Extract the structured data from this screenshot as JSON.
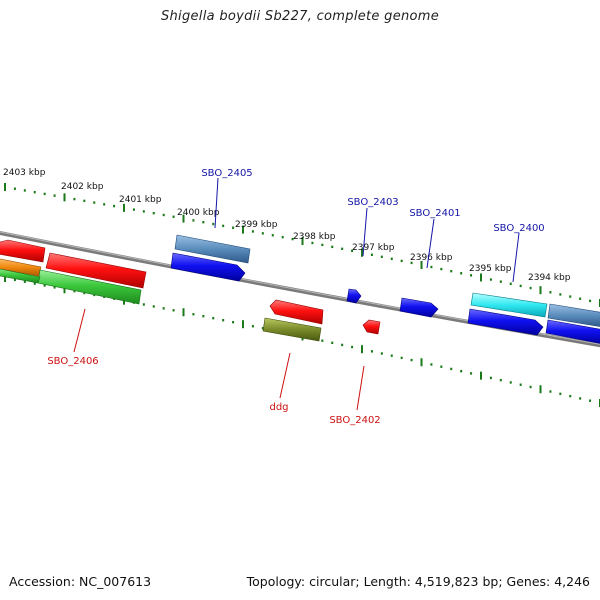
{
  "title": "Shigella boydii Sb227, complete genome",
  "footer": {
    "accession": "Accession: NC_007613",
    "stats": "Topology: circular; Length: 4,519,823 bp; Genes: 4,246"
  },
  "colors": {
    "backbone": "#808080",
    "tick": "#1a7a1a",
    "label_forward": "#1515a8",
    "label_reverse": "#cc1111"
  },
  "scale_labels": [
    "2403 kbp",
    "2402 kbp",
    "2401 kbp",
    "2400 kbp",
    "2399 kbp",
    "2398 kbp",
    "2397 kbp",
    "2396 kbp",
    "2395 kbp",
    "2394 kbp"
  ],
  "gene_labels": {
    "top": [
      "SBO_2405",
      "SBO_2403",
      "SBO_2401",
      "SBO_2400"
    ],
    "bottom": [
      "SBO_2406",
      "ddg",
      "SBO_2402"
    ]
  }
}
